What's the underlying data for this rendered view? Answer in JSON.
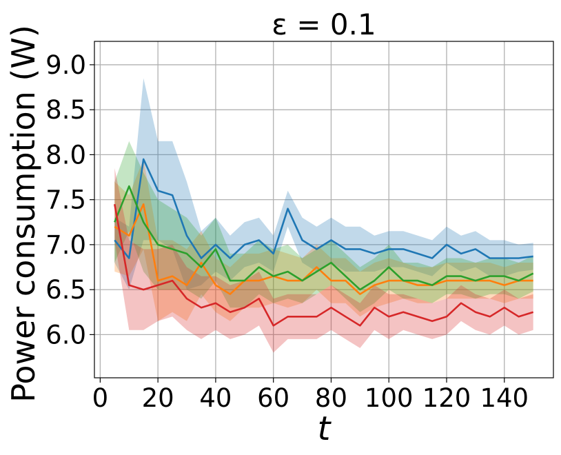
{
  "chart_data": {
    "type": "line",
    "title": "ε = 0.1",
    "xlabel": "t",
    "ylabel": "Power consumption (W)",
    "xlim": [
      -2,
      157
    ],
    "ylim": [
      5.52,
      9.26
    ],
    "xticks": [
      0,
      20,
      40,
      60,
      80,
      100,
      120,
      140
    ],
    "yticks": [
      6.0,
      6.5,
      7.0,
      7.5,
      8.0,
      8.5,
      9.0
    ],
    "xtick_labels": [
      "0",
      "20",
      "40",
      "60",
      "80",
      "100",
      "120",
      "140"
    ],
    "ytick_labels": [
      "6.0",
      "6.5",
      "7.0",
      "7.5",
      "8.0",
      "8.5",
      "9.0"
    ],
    "grid": true,
    "legend": "none",
    "series": [
      {
        "color": "#1f77b4",
        "x": [
          5,
          10,
          15,
          20,
          25,
          30,
          35,
          40,
          45,
          50,
          55,
          60,
          65,
          70,
          75,
          80,
          85,
          90,
          95,
          100,
          105,
          110,
          115,
          120,
          125,
          130,
          135,
          140,
          145,
          150
        ],
        "y": [
          7.05,
          6.85,
          7.95,
          7.6,
          7.55,
          7.1,
          6.85,
          7.0,
          6.85,
          7.0,
          7.05,
          6.9,
          7.4,
          7.05,
          6.95,
          7.05,
          6.95,
          6.95,
          6.9,
          6.95,
          6.95,
          6.9,
          6.85,
          7.0,
          6.9,
          6.95,
          6.85,
          6.85,
          6.85,
          6.87
        ],
        "band": [
          0.25,
          0.35,
          0.9,
          0.55,
          0.6,
          0.6,
          0.3,
          0.3,
          0.25,
          0.25,
          0.25,
          0.2,
          0.2,
          0.25,
          0.25,
          0.25,
          0.25,
          0.25,
          0.2,
          0.2,
          0.2,
          0.2,
          0.2,
          0.2,
          0.2,
          0.2,
          0.2,
          0.2,
          0.15,
          0.15
        ]
      },
      {
        "color": "#ff7f0e",
        "x": [
          5,
          10,
          15,
          20,
          25,
          30,
          35,
          40,
          45,
          50,
          55,
          60,
          65,
          70,
          75,
          80,
          85,
          90,
          95,
          100,
          105,
          110,
          115,
          120,
          125,
          130,
          135,
          140,
          145,
          150
        ],
        "y": [
          7.2,
          7.1,
          7.45,
          6.6,
          6.65,
          6.55,
          6.8,
          6.55,
          6.45,
          6.6,
          6.6,
          6.65,
          6.6,
          6.6,
          6.75,
          6.6,
          6.6,
          6.45,
          6.55,
          6.6,
          6.6,
          6.55,
          6.55,
          6.6,
          6.6,
          6.6,
          6.6,
          6.55,
          6.6,
          6.6
        ],
        "band": [
          0.5,
          0.45,
          0.5,
          0.45,
          0.4,
          0.4,
          0.35,
          0.3,
          0.3,
          0.3,
          0.3,
          0.3,
          0.3,
          0.25,
          0.25,
          0.25,
          0.25,
          0.25,
          0.25,
          0.25,
          0.2,
          0.2,
          0.2,
          0.2,
          0.2,
          0.2,
          0.2,
          0.2,
          0.2,
          0.2
        ]
      },
      {
        "color": "#2ca02c",
        "x": [
          5,
          10,
          15,
          20,
          25,
          30,
          35,
          40,
          45,
          50,
          55,
          60,
          65,
          70,
          75,
          80,
          85,
          90,
          95,
          100,
          105,
          110,
          115,
          120,
          125,
          130,
          135,
          140,
          145,
          150
        ],
        "y": [
          7.25,
          7.65,
          7.25,
          7.0,
          6.95,
          6.9,
          6.75,
          6.95,
          6.6,
          6.6,
          6.75,
          6.65,
          6.7,
          6.6,
          6.7,
          6.8,
          6.65,
          6.5,
          6.6,
          6.75,
          6.6,
          6.6,
          6.55,
          6.65,
          6.65,
          6.6,
          6.65,
          6.65,
          6.6,
          6.68
        ],
        "band": [
          0.45,
          0.5,
          0.55,
          0.5,
          0.45,
          0.4,
          0.35,
          0.35,
          0.3,
          0.3,
          0.3,
          0.3,
          0.3,
          0.25,
          0.25,
          0.25,
          0.25,
          0.25,
          0.25,
          0.25,
          0.2,
          0.2,
          0.2,
          0.2,
          0.2,
          0.2,
          0.2,
          0.2,
          0.2,
          0.2
        ]
      },
      {
        "color": "#d62728",
        "x": [
          5,
          10,
          15,
          20,
          25,
          30,
          35,
          40,
          45,
          50,
          55,
          60,
          65,
          70,
          75,
          80,
          85,
          90,
          95,
          100,
          105,
          110,
          115,
          120,
          125,
          130,
          135,
          140,
          145,
          150
        ],
        "y": [
          7.45,
          6.55,
          6.5,
          6.55,
          6.6,
          6.4,
          6.3,
          6.35,
          6.25,
          6.3,
          6.4,
          6.1,
          6.2,
          6.2,
          6.2,
          6.3,
          6.2,
          6.1,
          6.3,
          6.2,
          6.25,
          6.2,
          6.15,
          6.2,
          6.35,
          6.25,
          6.2,
          6.3,
          6.2,
          6.25
        ],
        "band": [
          0.4,
          0.5,
          0.45,
          0.4,
          0.4,
          0.35,
          0.35,
          0.3,
          0.3,
          0.3,
          0.3,
          0.3,
          0.25,
          0.25,
          0.25,
          0.25,
          0.25,
          0.25,
          0.25,
          0.25,
          0.2,
          0.2,
          0.2,
          0.2,
          0.2,
          0.2,
          0.2,
          0.2,
          0.2,
          0.2
        ]
      }
    ]
  }
}
